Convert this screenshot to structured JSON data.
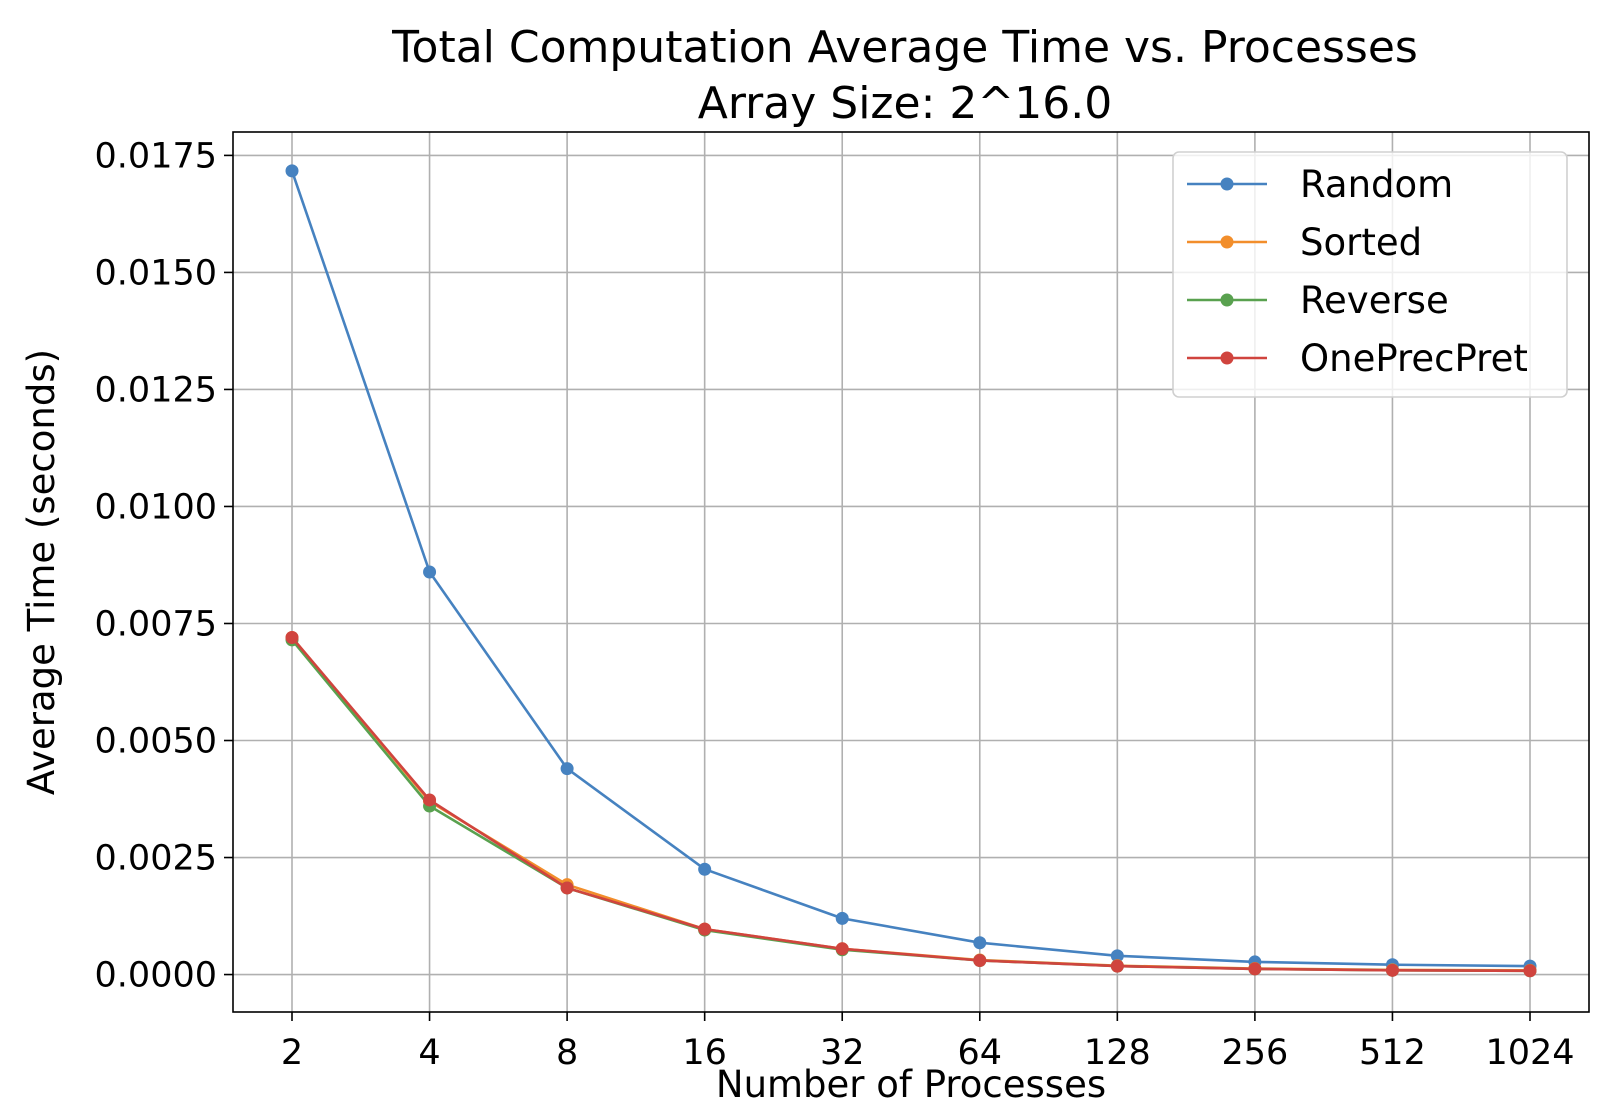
{
  "chart_data": {
    "type": "line",
    "title": "Total Computation Average Time vs. Processes",
    "subtitle": "Array Size: 2^16.0",
    "xlabel": "Number of Processes",
    "ylabel": "Average Time (seconds)",
    "x_scale": "log2",
    "x": [
      2,
      4,
      8,
      16,
      32,
      64,
      128,
      256,
      512,
      1024
    ],
    "x_tick_labels": [
      "2",
      "4",
      "8",
      "16",
      "32",
      "64",
      "128",
      "256",
      "512",
      "1024"
    ],
    "y_ticks": [
      0.0,
      0.0025,
      0.005,
      0.0075,
      0.01,
      0.0125,
      0.015,
      0.0175
    ],
    "y_tick_labels": [
      "0.0000",
      "0.0025",
      "0.0050",
      "0.0075",
      "0.0100",
      "0.0125",
      "0.0150",
      "0.0175"
    ],
    "ylim": [
      -0.0008,
      0.018
    ],
    "grid": true,
    "legend_position": "top-right",
    "series": [
      {
        "name": "Random",
        "color": "#4682c0",
        "values": [
          0.01717,
          0.0086,
          0.0044,
          0.00225,
          0.0012,
          0.00068,
          0.0004,
          0.00027,
          0.00021,
          0.00018
        ]
      },
      {
        "name": "Sorted",
        "color": "#f28e2b",
        "values": [
          0.0072,
          0.0037,
          0.00192,
          0.00097,
          0.00055,
          0.00031,
          0.00019,
          0.00013,
          0.0001,
          9e-05
        ]
      },
      {
        "name": "Reverse",
        "color": "#59a14f",
        "values": [
          0.00715,
          0.0036,
          0.00185,
          0.00095,
          0.00053,
          0.0003,
          0.00018,
          0.00012,
          9e-05,
          8e-05
        ]
      },
      {
        "name": "OnePrecPret",
        "color": "#d0443e",
        "values": [
          0.0072,
          0.00373,
          0.00185,
          0.00097,
          0.00055,
          0.0003,
          0.00018,
          0.00012,
          9e-05,
          8e-05
        ]
      }
    ]
  }
}
